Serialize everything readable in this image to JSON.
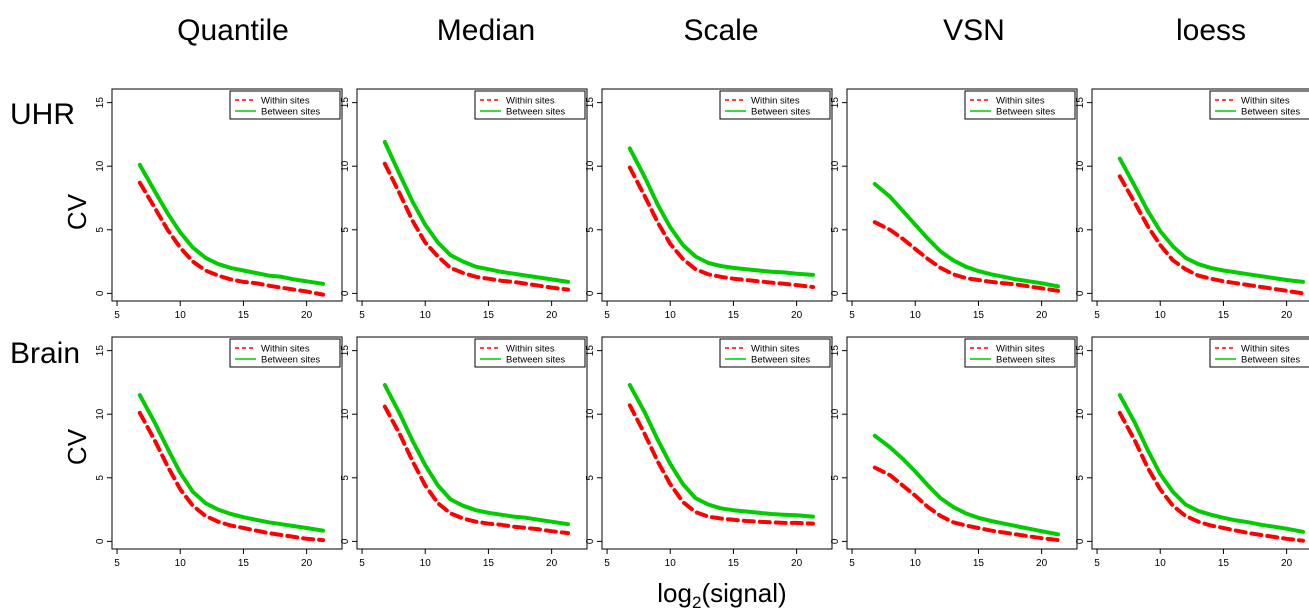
{
  "figure": {
    "column_titles": [
      "Quantile",
      "Median",
      "Scale",
      "VSN",
      "loess"
    ],
    "row_labels": [
      "UHR",
      "Brain"
    ],
    "ylabel": "CV",
    "xlabel_main": "log",
    "xlabel_sub": "2",
    "xlabel_tail": "(signal)"
  },
  "legend": {
    "entries": [
      "Within sites",
      "Between sites"
    ]
  },
  "axes": {
    "xlim": [
      4.6,
      22.8
    ],
    "ylim": [
      -0.6,
      15.6
    ],
    "x_ticks": [
      5,
      10,
      15,
      20
    ],
    "y_ticks": [
      0,
      5,
      10,
      15
    ],
    "x_tick_labels": [
      "5",
      "10",
      "15",
      "20"
    ],
    "y_tick_labels": [
      "0",
      "5",
      "10",
      "15"
    ]
  },
  "colors": {
    "within": "#ff0000",
    "between": "#00cc00",
    "axis": "#000000"
  },
  "chart_data": [
    {
      "type": "line",
      "row": "UHR",
      "method": "Quantile",
      "x": [
        6.8,
        8,
        9,
        10,
        11,
        12,
        13,
        14,
        15,
        16,
        17,
        18,
        19,
        20,
        21.3
      ],
      "series": [
        {
          "name": "Within sites",
          "values": [
            8.7,
            6.7,
            5.0,
            3.6,
            2.5,
            1.8,
            1.4,
            1.1,
            0.9,
            0.8,
            0.6,
            0.45,
            0.3,
            0.15,
            -0.1
          ]
        },
        {
          "name": "Between sites",
          "values": [
            10.1,
            8.0,
            6.3,
            4.8,
            3.6,
            2.8,
            2.3,
            2.0,
            1.8,
            1.6,
            1.4,
            1.3,
            1.1,
            0.95,
            0.75
          ]
        }
      ]
    },
    {
      "type": "line",
      "row": "UHR",
      "method": "Median",
      "x": [
        6.8,
        8,
        9,
        10,
        11,
        12,
        13,
        14,
        15,
        16,
        17,
        18,
        19,
        20,
        21.3
      ],
      "series": [
        {
          "name": "Within sites",
          "values": [
            10.2,
            7.8,
            5.7,
            4.0,
            2.9,
            2.0,
            1.6,
            1.3,
            1.15,
            1.0,
            0.9,
            0.75,
            0.6,
            0.45,
            0.3
          ]
        },
        {
          "name": "Between sites",
          "values": [
            11.9,
            9.3,
            7.2,
            5.4,
            4.0,
            3.0,
            2.5,
            2.1,
            1.9,
            1.7,
            1.55,
            1.4,
            1.25,
            1.1,
            0.9
          ]
        }
      ]
    },
    {
      "type": "line",
      "row": "UHR",
      "method": "Scale",
      "x": [
        6.8,
        8,
        9,
        10,
        11,
        12,
        13,
        14,
        15,
        16,
        17,
        18,
        19,
        20,
        21.3
      ],
      "series": [
        {
          "name": "Within sites",
          "values": [
            9.9,
            7.6,
            5.6,
            3.9,
            2.7,
            1.9,
            1.5,
            1.3,
            1.15,
            1.05,
            0.95,
            0.85,
            0.75,
            0.65,
            0.5
          ]
        },
        {
          "name": "Between sites",
          "values": [
            11.4,
            9.1,
            7.0,
            5.2,
            3.8,
            2.9,
            2.4,
            2.15,
            2.0,
            1.9,
            1.8,
            1.7,
            1.65,
            1.55,
            1.45
          ]
        }
      ]
    },
    {
      "type": "line",
      "row": "UHR",
      "method": "VSN",
      "x": [
        6.8,
        8,
        9,
        10,
        11,
        12,
        13,
        14,
        15,
        16,
        17,
        18,
        19,
        20,
        21.3
      ],
      "series": [
        {
          "name": "Within sites",
          "values": [
            5.6,
            5.0,
            4.3,
            3.5,
            2.7,
            2.0,
            1.5,
            1.2,
            1.05,
            0.9,
            0.8,
            0.7,
            0.55,
            0.4,
            0.2
          ]
        },
        {
          "name": "Between sites",
          "values": [
            8.6,
            7.6,
            6.5,
            5.4,
            4.3,
            3.3,
            2.6,
            2.1,
            1.75,
            1.5,
            1.3,
            1.1,
            0.95,
            0.8,
            0.55
          ]
        }
      ]
    },
    {
      "type": "line",
      "row": "UHR",
      "method": "loess",
      "x": [
        6.8,
        8,
        9,
        10,
        11,
        12,
        13,
        14,
        15,
        16,
        17,
        18,
        19,
        20,
        21.3
      ],
      "series": [
        {
          "name": "Within sites",
          "values": [
            9.2,
            7.1,
            5.3,
            3.8,
            2.6,
            1.9,
            1.4,
            1.15,
            0.95,
            0.8,
            0.65,
            0.5,
            0.35,
            0.2,
            0.0
          ]
        },
        {
          "name": "Between sites",
          "values": [
            10.6,
            8.4,
            6.5,
            4.9,
            3.7,
            2.8,
            2.3,
            2.0,
            1.8,
            1.65,
            1.5,
            1.35,
            1.2,
            1.05,
            0.9
          ]
        }
      ]
    },
    {
      "type": "line",
      "row": "Brain",
      "method": "Quantile",
      "x": [
        6.8,
        8,
        9,
        10,
        11,
        12,
        13,
        14,
        15,
        16,
        17,
        18,
        19,
        20,
        21.3
      ],
      "series": [
        {
          "name": "Within sites",
          "values": [
            10.1,
            7.9,
            5.9,
            4.1,
            2.8,
            2.0,
            1.55,
            1.25,
            1.05,
            0.85,
            0.65,
            0.5,
            0.35,
            0.2,
            0.1
          ]
        },
        {
          "name": "Between sites",
          "values": [
            11.5,
            9.3,
            7.3,
            5.4,
            3.9,
            3.0,
            2.5,
            2.15,
            1.9,
            1.7,
            1.5,
            1.35,
            1.2,
            1.05,
            0.85
          ]
        }
      ]
    },
    {
      "type": "line",
      "row": "Brain",
      "method": "Median",
      "x": [
        6.8,
        8,
        9,
        10,
        11,
        12,
        13,
        14,
        15,
        16,
        17,
        18,
        19,
        20,
        21.3
      ],
      "series": [
        {
          "name": "Within sites",
          "values": [
            10.6,
            8.4,
            6.3,
            4.4,
            3.0,
            2.2,
            1.8,
            1.55,
            1.4,
            1.3,
            1.15,
            1.05,
            0.95,
            0.8,
            0.65
          ]
        },
        {
          "name": "Between sites",
          "values": [
            12.3,
            10.0,
            7.9,
            6.0,
            4.4,
            3.3,
            2.8,
            2.45,
            2.25,
            2.1,
            1.95,
            1.85,
            1.7,
            1.55,
            1.35
          ]
        }
      ]
    },
    {
      "type": "line",
      "row": "Brain",
      "method": "Scale",
      "x": [
        6.8,
        8,
        9,
        10,
        11,
        12,
        13,
        14,
        15,
        16,
        17,
        18,
        19,
        20,
        21.3
      ],
      "series": [
        {
          "name": "Within sites",
          "values": [
            10.7,
            8.4,
            6.3,
            4.5,
            3.1,
            2.3,
            1.95,
            1.8,
            1.7,
            1.6,
            1.55,
            1.5,
            1.45,
            1.45,
            1.4
          ]
        },
        {
          "name": "Between sites",
          "values": [
            12.3,
            10.1,
            8.0,
            6.1,
            4.5,
            3.4,
            2.9,
            2.6,
            2.45,
            2.35,
            2.25,
            2.15,
            2.1,
            2.05,
            1.95
          ]
        }
      ]
    },
    {
      "type": "line",
      "row": "Brain",
      "method": "VSN",
      "x": [
        6.8,
        8,
        9,
        10,
        11,
        12,
        13,
        14,
        15,
        16,
        17,
        18,
        19,
        20,
        21.3
      ],
      "series": [
        {
          "name": "Within sites",
          "values": [
            5.8,
            5.2,
            4.4,
            3.6,
            2.7,
            2.0,
            1.5,
            1.25,
            1.05,
            0.85,
            0.7,
            0.55,
            0.4,
            0.25,
            0.1
          ]
        },
        {
          "name": "Between sites",
          "values": [
            8.3,
            7.4,
            6.5,
            5.5,
            4.4,
            3.4,
            2.7,
            2.2,
            1.85,
            1.6,
            1.4,
            1.2,
            1.0,
            0.8,
            0.55
          ]
        }
      ]
    },
    {
      "type": "line",
      "row": "Brain",
      "method": "loess",
      "x": [
        6.8,
        8,
        9,
        10,
        11,
        12,
        13,
        14,
        15,
        16,
        17,
        18,
        19,
        20,
        21.3
      ],
      "series": [
        {
          "name": "Within sites",
          "values": [
            10.1,
            7.9,
            5.8,
            4.1,
            2.8,
            2.0,
            1.55,
            1.25,
            1.05,
            0.85,
            0.65,
            0.5,
            0.35,
            0.2,
            0.05
          ]
        },
        {
          "name": "Between sites",
          "values": [
            11.5,
            9.3,
            7.2,
            5.3,
            3.9,
            2.9,
            2.4,
            2.1,
            1.85,
            1.65,
            1.5,
            1.3,
            1.15,
            1.0,
            0.75
          ]
        }
      ]
    }
  ]
}
